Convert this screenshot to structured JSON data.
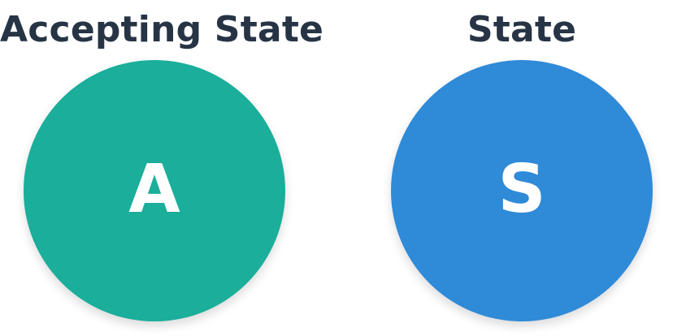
{
  "legend": {
    "accepting": {
      "title": "Accepting State",
      "letter": "A",
      "color": "#1aae9b"
    },
    "normal": {
      "title": "State",
      "letter": "S",
      "color": "#2f8ad8"
    },
    "title_color": "#263445"
  }
}
